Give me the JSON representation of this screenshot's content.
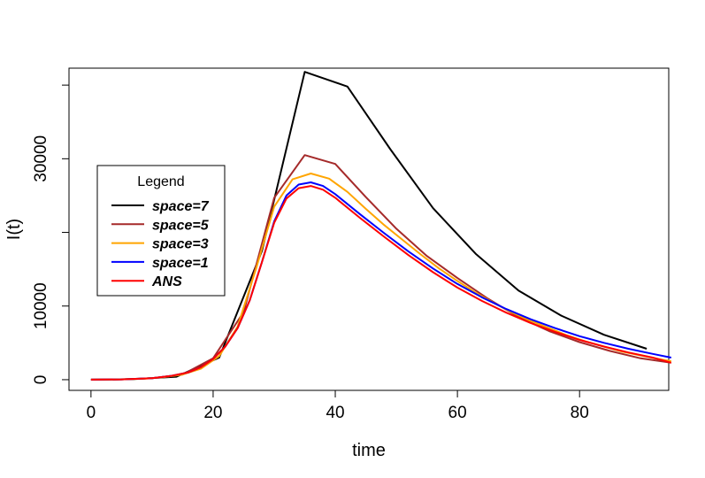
{
  "chart_data": {
    "type": "line",
    "title": "",
    "xlabel": "time",
    "ylabel": "I(t)",
    "xlim": [
      -3.6,
      94.6
    ],
    "ylim": [
      -1450,
      42300
    ],
    "x_ticks": [
      0,
      20,
      40,
      60,
      80
    ],
    "x_tick_labels": [
      "0",
      "20",
      "40",
      "60",
      "80"
    ],
    "y_ticks": [
      0,
      10000,
      30000
    ],
    "y_tick_labels": [
      "0",
      "10000",
      "30000"
    ],
    "y_minor_ticks": [
      20000,
      40000
    ],
    "grid": false,
    "legend": {
      "title": "Legend",
      "position": "left",
      "entries": [
        "space=7",
        "space=5",
        "space=3",
        "space=1",
        "ANS"
      ]
    },
    "series": [
      {
        "name": "space=7",
        "color": "#000000",
        "x": [
          0,
          7,
          14,
          21,
          28,
          35,
          42,
          49,
          56,
          63,
          70,
          77,
          84,
          91
        ],
        "y": [
          0,
          80,
          400,
          3000,
          17500,
          41800,
          39800,
          31300,
          23300,
          17100,
          12100,
          8700,
          6100,
          4200
        ]
      },
      {
        "name": "space=5",
        "color": "#A52A2A",
        "x": [
          0,
          5,
          10,
          15,
          20,
          25,
          30,
          35,
          40,
          45,
          50,
          55,
          60,
          65,
          70,
          75,
          80,
          85,
          90,
          95
        ],
        "y": [
          0,
          40,
          200,
          700,
          2900,
          9200,
          24700,
          30500,
          29300,
          24800,
          20500,
          16800,
          13800,
          11000,
          8500,
          6600,
          5100,
          3900,
          2900,
          2300
        ]
      },
      {
        "name": "space=3",
        "color": "#FFA500",
        "x": [
          0,
          3,
          6,
          9,
          12,
          15,
          18,
          21,
          24,
          27,
          30,
          33,
          36,
          39,
          42,
          45,
          48,
          51,
          54,
          57,
          60,
          63,
          66,
          69,
          72,
          75,
          78,
          81,
          84,
          87,
          90,
          93,
          95
        ],
        "y": [
          0,
          20,
          60,
          150,
          350,
          700,
          1500,
          3200,
          7200,
          15000,
          23500,
          27200,
          28000,
          27300,
          25500,
          23200,
          21000,
          19000,
          17000,
          15100,
          13400,
          11800,
          10400,
          9100,
          8000,
          7000,
          6000,
          5200,
          4500,
          3800,
          3300,
          2800,
          2500
        ]
      },
      {
        "name": "space=1",
        "color": "#0000FF",
        "x": [
          0,
          5,
          10,
          13,
          16,
          18,
          20,
          22,
          24,
          26,
          28,
          30,
          32,
          34,
          36,
          38,
          40,
          44,
          48,
          52,
          56,
          60,
          64,
          68,
          72,
          76,
          80,
          84,
          88,
          92,
          95
        ],
        "y": [
          0,
          40,
          200,
          500,
          1000,
          1700,
          2800,
          4500,
          7000,
          10800,
          16000,
          21500,
          25000,
          26500,
          26800,
          26300,
          25200,
          22500,
          19900,
          17400,
          15100,
          13000,
          11200,
          9600,
          8200,
          7000,
          5900,
          5000,
          4200,
          3500,
          3000
        ]
      },
      {
        "name": "ANS",
        "color": "#FF0000",
        "x": [
          0,
          5,
          10,
          13,
          16,
          18,
          20,
          22,
          24,
          26,
          28,
          30,
          32,
          34,
          36,
          38,
          40,
          44,
          48,
          52,
          56,
          60,
          64,
          68,
          72,
          76,
          80,
          84,
          88,
          92,
          95
        ],
        "y": [
          0,
          40,
          200,
          500,
          1000,
          1700,
          2800,
          4500,
          7000,
          10800,
          16000,
          21300,
          24600,
          26000,
          26300,
          25800,
          24700,
          22000,
          19400,
          16900,
          14600,
          12500,
          10700,
          9100,
          7700,
          6500,
          5400,
          4500,
          3700,
          3000,
          2300
        ]
      }
    ]
  }
}
